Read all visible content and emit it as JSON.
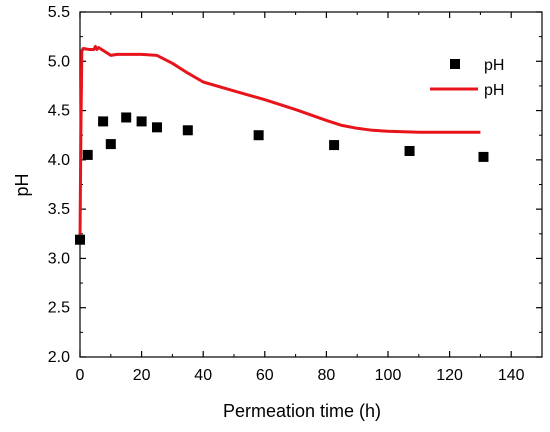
{
  "chart_data": {
    "type": "line",
    "xlabel": "Permeation time (h)",
    "ylabel": "pH",
    "xlim": [
      0,
      150
    ],
    "ylim": [
      2.0,
      5.5
    ],
    "x_ticks": [
      0,
      20,
      40,
      60,
      80,
      100,
      120,
      140
    ],
    "y_ticks": [
      2.0,
      2.5,
      3.0,
      3.5,
      4.0,
      4.5,
      5.0,
      5.5
    ],
    "grid": false,
    "legend_position": "top-right",
    "series": [
      {
        "name": "pH",
        "kind": "scatter",
        "marker": "square",
        "color": "#000000",
        "x": [
          0,
          2.5,
          7.5,
          10,
          15,
          20,
          25,
          35,
          58,
          82.5,
          107,
          131
        ],
        "y": [
          3.19,
          4.05,
          4.39,
          4.16,
          4.43,
          4.39,
          4.33,
          4.3,
          4.25,
          4.15,
          4.09,
          4.03
        ]
      },
      {
        "name": "pH",
        "kind": "line",
        "color": "#e8141b",
        "x": [
          0,
          0.3,
          0.6,
          1,
          3,
          4.5,
          5,
          5.5,
          6,
          7,
          8,
          9,
          10,
          12,
          15,
          20,
          25,
          30,
          35,
          40,
          50,
          60,
          70,
          80,
          85,
          90,
          95,
          100,
          110,
          120,
          130
        ],
        "y": [
          3.19,
          4.3,
          5.1,
          5.13,
          5.12,
          5.12,
          5.15,
          5.12,
          5.14,
          5.12,
          5.1,
          5.08,
          5.06,
          5.07,
          5.07,
          5.07,
          5.06,
          4.98,
          4.88,
          4.79,
          4.7,
          4.61,
          4.51,
          4.4,
          4.35,
          4.32,
          4.3,
          4.29,
          4.28,
          4.28,
          4.28
        ]
      }
    ]
  }
}
